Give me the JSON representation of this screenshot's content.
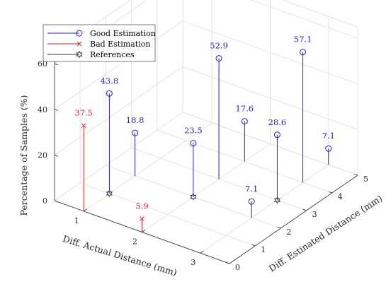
{
  "chart_data": {
    "type": "stem3d",
    "xlabel": "Diff. Actual Distance (mm)",
    "ylabel": "Diff. Estinated Distance (mm)",
    "zlabel": "Percentage of Samples (%)",
    "xlim": [
      0.5,
      3.5
    ],
    "ylim": [
      0,
      5
    ],
    "zlim": [
      0,
      65
    ],
    "xticks": [
      1,
      2,
      3
    ],
    "yticks": [
      0,
      1,
      2,
      3,
      4,
      5
    ],
    "zticks": [
      0,
      20,
      40,
      60
    ],
    "grid": true,
    "legend_position": "top-left",
    "colors": {
      "good": "#1f1fd6",
      "bad": "#e8202a",
      "reference": "#333333"
    },
    "series": [
      {
        "name": "Good Estimation",
        "marker": "circle",
        "points": [
          {
            "x": 1,
            "y": 1,
            "z": 43.8,
            "label": "43.8"
          },
          {
            "x": 1,
            "y": 2,
            "z": 18.8,
            "label": "18.8"
          },
          {
            "x": 2,
            "y": 2,
            "z": 23.5,
            "label": "23.5"
          },
          {
            "x": 2,
            "y": 3,
            "z": 52.9,
            "label": "52.9"
          },
          {
            "x": 2,
            "y": 4,
            "z": 17.6,
            "label": "17.6"
          },
          {
            "x": 3,
            "y": 2,
            "z": 7.1,
            "label": "7.1"
          },
          {
            "x": 3,
            "y": 3,
            "z": 28.6,
            "label": "28.6"
          },
          {
            "x": 3,
            "y": 4,
            "z": 57.1,
            "label": "57.1"
          },
          {
            "x": 3,
            "y": 5,
            "z": 7.1,
            "label": "7.1"
          }
        ]
      },
      {
        "name": "Bad Estimation",
        "marker": "x",
        "points": [
          {
            "x": 1,
            "y": 0,
            "z": 37.5,
            "label": "37.5"
          },
          {
            "x": 2,
            "y": 0,
            "z": 5.9,
            "label": "5.9"
          }
        ]
      },
      {
        "name": "References",
        "marker": "hexagram",
        "points": [
          {
            "x": 1,
            "y": 1,
            "z": 0
          },
          {
            "x": 2,
            "y": 2,
            "z": 0
          },
          {
            "x": 3,
            "y": 3,
            "z": 0
          }
        ]
      }
    ]
  }
}
